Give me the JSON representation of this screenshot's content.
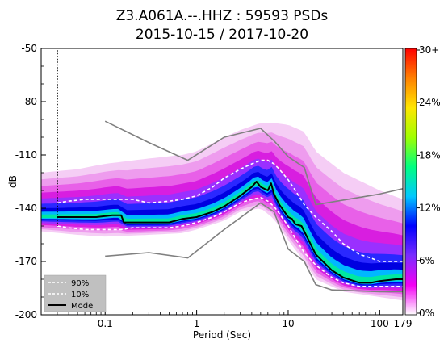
{
  "chart_data": {
    "type": "heatmap",
    "title_line1": "Z3.A061A.--.HHZ : 59593 PSDs",
    "title_line2": "2015-10-15 / 2017-10-20",
    "xlabel": "Period (Sec)",
    "ylabel": "dB",
    "x_scale": "log",
    "xlim": [
      0.02,
      179
    ],
    "ylim": [
      -200,
      -50
    ],
    "x_ticks": [
      {
        "value": 0.1,
        "label": "0.1"
      },
      {
        "value": 1,
        "label": "1"
      },
      {
        "value": 10,
        "label": "10"
      },
      {
        "value": 100,
        "label": "100"
      },
      {
        "value": 179,
        "label": "179"
      }
    ],
    "y_ticks": [
      {
        "value": -50,
        "label": "-50"
      },
      {
        "value": -80,
        "label": "-80"
      },
      {
        "value": -110,
        "label": "-110"
      },
      {
        "value": -140,
        "label": "-140"
      },
      {
        "value": -170,
        "label": "-170"
      },
      {
        "value": -200,
        "label": "-200"
      }
    ],
    "colorbar": {
      "ticks": [
        "0%",
        "6%",
        "12%",
        "18%",
        "24%",
        "30+"
      ],
      "colors": [
        "#ffffff",
        "#f400f4",
        "#7a2cff",
        "#0000ff",
        "#00c8ff",
        "#00ff80",
        "#a0ff00",
        "#ffe600",
        "#ff8000",
        "#ff0000"
      ]
    },
    "legend": {
      "position": "lower-left",
      "entries": [
        "90%",
        "10%",
        "Mode"
      ]
    },
    "series": [
      {
        "name": "90%",
        "style": "dashed-white",
        "points": [
          [
            0.03,
            -137
          ],
          [
            0.04,
            -136
          ],
          [
            0.06,
            -135
          ],
          [
            0.1,
            -135
          ],
          [
            0.15,
            -135
          ],
          [
            0.2,
            -135
          ],
          [
            0.3,
            -137
          ],
          [
            0.5,
            -136
          ],
          [
            0.7,
            -135
          ],
          [
            1,
            -133
          ],
          [
            1.5,
            -128
          ],
          [
            2,
            -123
          ],
          [
            3,
            -118
          ],
          [
            4,
            -115
          ],
          [
            5,
            -113
          ],
          [
            6,
            -113
          ],
          [
            7,
            -115
          ],
          [
            8,
            -118
          ],
          [
            10,
            -124
          ],
          [
            12,
            -130
          ],
          [
            15,
            -138
          ],
          [
            20,
            -145
          ],
          [
            30,
            -153
          ],
          [
            40,
            -160
          ],
          [
            60,
            -166
          ],
          [
            80,
            -168
          ],
          [
            100,
            -170
          ],
          [
            150,
            -170
          ],
          [
            179,
            -170
          ]
        ]
      },
      {
        "name": "10%",
        "style": "dashed-white",
        "points": [
          [
            0.03,
            -150
          ],
          [
            0.04,
            -151
          ],
          [
            0.06,
            -152
          ],
          [
            0.1,
            -152
          ],
          [
            0.15,
            -152
          ],
          [
            0.2,
            -151
          ],
          [
            0.3,
            -151
          ],
          [
            0.5,
            -151
          ],
          [
            0.7,
            -150
          ],
          [
            1,
            -148
          ],
          [
            1.5,
            -145
          ],
          [
            2,
            -142
          ],
          [
            3,
            -137
          ],
          [
            4,
            -135
          ],
          [
            5,
            -134
          ],
          [
            6,
            -136
          ],
          [
            7,
            -139
          ],
          [
            8,
            -143
          ],
          [
            10,
            -150
          ],
          [
            12,
            -157
          ],
          [
            15,
            -165
          ],
          [
            20,
            -172
          ],
          [
            30,
            -179
          ],
          [
            40,
            -182
          ],
          [
            60,
            -184
          ],
          [
            80,
            -184
          ],
          [
            100,
            -184
          ],
          [
            150,
            -184
          ],
          [
            179,
            -184
          ]
        ]
      },
      {
        "name": "Mode",
        "style": "solid-black",
        "points": [
          [
            0.03,
            -145
          ],
          [
            0.05,
            -145
          ],
          [
            0.08,
            -145
          ],
          [
            0.12,
            -144
          ],
          [
            0.15,
            -144
          ],
          [
            0.16,
            -148
          ],
          [
            0.2,
            -148
          ],
          [
            0.3,
            -148
          ],
          [
            0.5,
            -148
          ],
          [
            0.7,
            -146
          ],
          [
            1,
            -145
          ],
          [
            1.5,
            -142
          ],
          [
            2,
            -139
          ],
          [
            3,
            -133
          ],
          [
            4,
            -128
          ],
          [
            4.5,
            -125
          ],
          [
            5,
            -128
          ],
          [
            6,
            -130
          ],
          [
            6.5,
            -126
          ],
          [
            7,
            -132
          ],
          [
            8,
            -138
          ],
          [
            10,
            -145
          ],
          [
            11,
            -146
          ],
          [
            12,
            -149
          ],
          [
            14,
            -150
          ],
          [
            16,
            -156
          ],
          [
            20,
            -166
          ],
          [
            30,
            -175
          ],
          [
            40,
            -179
          ],
          [
            60,
            -182
          ],
          [
            80,
            -182
          ],
          [
            100,
            -181
          ],
          [
            150,
            -180
          ],
          [
            179,
            -180
          ]
        ]
      },
      {
        "name": "",
        "style": "dotted-black",
        "points": [
          [
            0.03,
            -51
          ],
          [
            0.03,
            -150
          ]
        ]
      },
      {
        "name": "",
        "style": "solid-gray",
        "points": [
          [
            0.1,
            -91
          ],
          [
            0.3,
            -103
          ],
          [
            0.8,
            -113
          ],
          [
            2,
            -100
          ],
          [
            5,
            -95
          ],
          [
            7,
            -102
          ],
          [
            10,
            -111
          ],
          [
            15,
            -117
          ],
          [
            20,
            -138
          ],
          [
            100,
            -132
          ],
          [
            179,
            -129
          ]
        ]
      },
      {
        "name": "",
        "style": "solid-gray",
        "points": [
          [
            0.1,
            -167
          ],
          [
            0.3,
            -165
          ],
          [
            0.8,
            -168
          ],
          [
            2,
            -152
          ],
          [
            5,
            -137
          ],
          [
            7,
            -142
          ],
          [
            10,
            -163
          ],
          [
            15,
            -170
          ],
          [
            20,
            -183
          ],
          [
            30,
            -186
          ],
          [
            100,
            -187
          ],
          [
            179,
            -187
          ]
        ]
      }
    ],
    "density_band": {
      "lower_envelope": [
        [
          0.02,
          -153
        ],
        [
          0.05,
          -155
        ],
        [
          0.1,
          -156
        ],
        [
          0.3,
          -155
        ],
        [
          0.7,
          -154
        ],
        [
          1,
          -152
        ],
        [
          2,
          -147
        ],
        [
          3,
          -142
        ],
        [
          5,
          -140
        ],
        [
          7,
          -146
        ],
        [
          10,
          -158
        ],
        [
          15,
          -170
        ],
        [
          20,
          -180
        ],
        [
          40,
          -187
        ],
        [
          100,
          -190
        ],
        [
          179,
          -192
        ]
      ],
      "upper_envelope": [
        [
          0.02,
          -120
        ],
        [
          0.05,
          -118
        ],
        [
          0.1,
          -115
        ],
        [
          0.3,
          -112
        ],
        [
          0.7,
          -110
        ],
        [
          1,
          -108
        ],
        [
          2,
          -100
        ],
        [
          3,
          -96
        ],
        [
          5,
          -92
        ],
        [
          7,
          -92
        ],
        [
          10,
          -93
        ],
        [
          15,
          -97
        ],
        [
          20,
          -108
        ],
        [
          40,
          -120
        ],
        [
          100,
          -130
        ],
        [
          179,
          -135
        ]
      ]
    }
  }
}
